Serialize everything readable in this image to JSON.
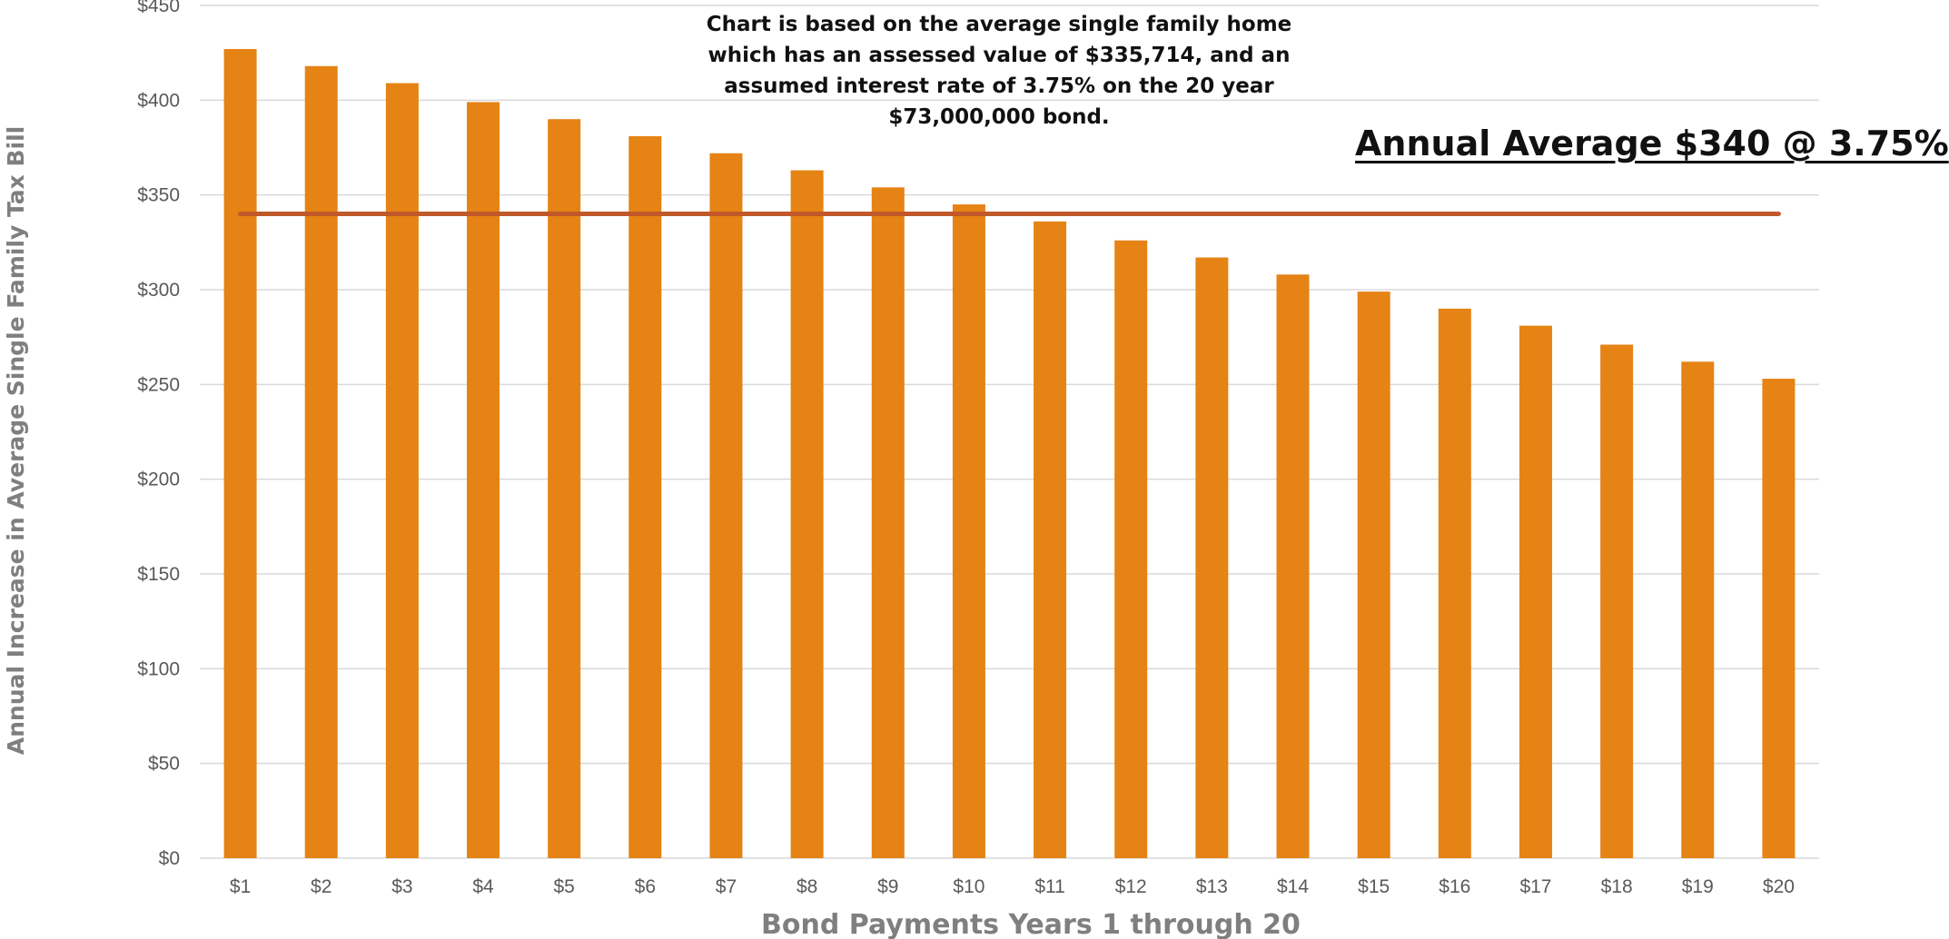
{
  "chart_data": {
    "type": "bar",
    "categories": [
      "$1",
      "$2",
      "$3",
      "$4",
      "$5",
      "$6",
      "$7",
      "$8",
      "$9",
      "$10",
      "$11",
      "$12",
      "$13",
      "$14",
      "$15",
      "$16",
      "$17",
      "$18",
      "$19",
      "$20"
    ],
    "series": [
      {
        "values": [
          427,
          418,
          409,
          399,
          390,
          381,
          372,
          363,
          354,
          345,
          336,
          326,
          317,
          308,
          299,
          290,
          281,
          271,
          262,
          253
        ]
      }
    ],
    "average": {
      "value": 340,
      "label": "Annual Average $340 @ 3.75%"
    },
    "annotation": "Chart is based on the average single family home which has an assessed value of $335,714, and an assumed interest rate of 3.75% on the 20 year $73,000,000 bond.",
    "title": "",
    "xlabel": "Bond Payments Years 1 through 20",
    "ylabel": "Annual Increase in Average Single Family Tax Bill",
    "ylim": [
      0,
      450
    ],
    "yticks": [
      "$0",
      "$50",
      "$100",
      "$150",
      "$200",
      "$250",
      "$300",
      "$350",
      "$400",
      "$450"
    ],
    "grid": true,
    "legend": "none",
    "colors": {
      "bar": "#e58315",
      "average_line": "#c0582a",
      "grid": "#d9d9d9",
      "axis_text": "#595959",
      "label_text": "#7f7f7f"
    }
  }
}
